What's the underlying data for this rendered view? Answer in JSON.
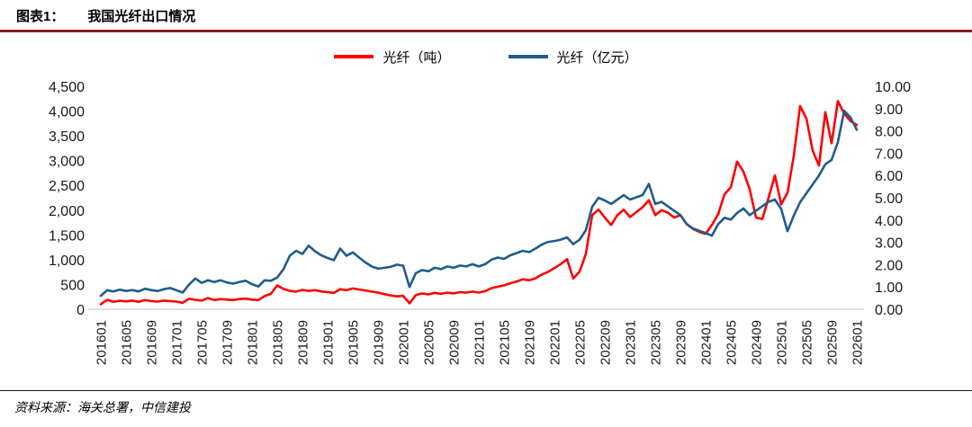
{
  "header": {
    "label": "图表1：",
    "title": "我国光纤出口情况"
  },
  "legend": [
    {
      "label": "光纤（吨）",
      "color": "#FF0000"
    },
    {
      "label": "光纤（亿元）",
      "color": "#1F5C8B"
    }
  ],
  "footer": {
    "source": "资料来源：海关总署，中信建投"
  },
  "colors": {
    "top_rule": "#8E1B21",
    "axis_line": "#bfbfbf"
  },
  "chart_data": {
    "type": "line",
    "title": "我国光纤出口情况",
    "legend_position": "top",
    "grid": false,
    "x_tick_every": 4,
    "left_axis": {
      "min": 0,
      "max": 4500,
      "step": 500,
      "label": "光纤（吨）"
    },
    "right_axis": {
      "min": 0,
      "max": 10,
      "step": 1,
      "label": "光纤（亿元）"
    },
    "x": [
      "201601",
      "201602",
      "201603",
      "201604",
      "201605",
      "201606",
      "201607",
      "201608",
      "201609",
      "201610",
      "201611",
      "201612",
      "201701",
      "201702",
      "201703",
      "201704",
      "201705",
      "201706",
      "201707",
      "201708",
      "201709",
      "201710",
      "201711",
      "201712",
      "201801",
      "201802",
      "201803",
      "201804",
      "201805",
      "201806",
      "201807",
      "201808",
      "201809",
      "201810",
      "201811",
      "201812",
      "201901",
      "201902",
      "201903",
      "201904",
      "201905",
      "201906",
      "201907",
      "201908",
      "201909",
      "201910",
      "201911",
      "201912",
      "202001",
      "202002",
      "202003",
      "202004",
      "202005",
      "202006",
      "202007",
      "202008",
      "202009",
      "202010",
      "202011",
      "202012",
      "202101",
      "202102",
      "202103",
      "202104",
      "202105",
      "202106",
      "202107",
      "202108",
      "202109",
      "202110",
      "202111",
      "202112",
      "202201",
      "202202",
      "202203",
      "202204",
      "202205",
      "202206",
      "202207",
      "202208",
      "202209",
      "202210",
      "202211",
      "202212",
      "202301",
      "202302",
      "202303",
      "202304",
      "202305",
      "202306",
      "202307",
      "202308",
      "202309",
      "202310",
      "202311",
      "202312",
      "202401",
      "202402",
      "202403",
      "202404",
      "202405",
      "202406",
      "202407",
      "202408",
      "202409",
      "202410",
      "202411",
      "202412",
      "202501",
      "202502",
      "202503",
      "202504",
      "202505",
      "202506",
      "202507",
      "202508",
      "202509",
      "202510",
      "202511",
      "202512",
      "202601"
    ],
    "series": [
      {
        "name": "光纤（吨）",
        "axis": "left",
        "color": "#FF0000",
        "values": [
          100,
          190,
          150,
          170,
          160,
          175,
          150,
          185,
          165,
          155,
          175,
          165,
          155,
          130,
          210,
          190,
          175,
          225,
          185,
          205,
          195,
          185,
          205,
          215,
          195,
          185,
          265,
          310,
          480,
          410,
          370,
          355,
          390,
          370,
          385,
          360,
          345,
          330,
          405,
          385,
          420,
          400,
          380,
          355,
          335,
          305,
          280,
          260,
          270,
          120,
          285,
          320,
          300,
          330,
          310,
          335,
          320,
          345,
          335,
          355,
          335,
          365,
          425,
          455,
          480,
          525,
          560,
          605,
          585,
          625,
          700,
          755,
          830,
          910,
          1010,
          620,
          760,
          1120,
          1900,
          2010,
          1850,
          1700,
          1900,
          2010,
          1860,
          1960,
          2060,
          2200,
          1900,
          2000,
          1950,
          1850,
          1900,
          1720,
          1620,
          1560,
          1520,
          1700,
          1920,
          2320,
          2460,
          2980,
          2780,
          2420,
          1850,
          1820,
          2250,
          2700,
          2120,
          2350,
          3100,
          4100,
          3850,
          3200,
          2900,
          3980,
          3350,
          4200,
          3950,
          3800,
          3720
        ]
      },
      {
        "name": "光纤（亿元）",
        "axis": "right",
        "color": "#1F5C8B",
        "values": [
          0.6,
          0.85,
          0.8,
          0.88,
          0.82,
          0.86,
          0.8,
          0.92,
          0.86,
          0.82,
          0.9,
          0.95,
          0.85,
          0.75,
          1.1,
          1.38,
          1.18,
          1.3,
          1.22,
          1.3,
          1.2,
          1.15,
          1.22,
          1.28,
          1.12,
          1.02,
          1.3,
          1.28,
          1.42,
          1.8,
          2.4,
          2.62,
          2.48,
          2.85,
          2.6,
          2.42,
          2.3,
          2.2,
          2.72,
          2.4,
          2.55,
          2.32,
          2.1,
          1.92,
          1.82,
          1.86,
          1.9,
          2.0,
          1.95,
          1.0,
          1.62,
          1.76,
          1.7,
          1.86,
          1.8,
          1.92,
          1.86,
          1.96,
          1.92,
          2.02,
          1.92,
          2.02,
          2.22,
          2.32,
          2.26,
          2.42,
          2.52,
          2.62,
          2.56,
          2.72,
          2.9,
          3.02,
          3.06,
          3.12,
          3.22,
          2.92,
          3.12,
          3.55,
          4.6,
          5.0,
          4.88,
          4.72,
          4.92,
          5.12,
          4.92,
          5.02,
          5.12,
          5.62,
          4.72,
          4.82,
          4.62,
          4.42,
          4.22,
          3.82,
          3.62,
          3.52,
          3.42,
          3.3,
          3.82,
          4.1,
          4.02,
          4.32,
          4.52,
          4.22,
          4.42,
          4.62,
          4.82,
          4.92,
          4.5,
          3.5,
          4.2,
          4.8,
          5.2,
          5.6,
          6.0,
          6.5,
          6.7,
          7.5,
          8.9,
          8.6,
          8.05
        ]
      }
    ]
  }
}
